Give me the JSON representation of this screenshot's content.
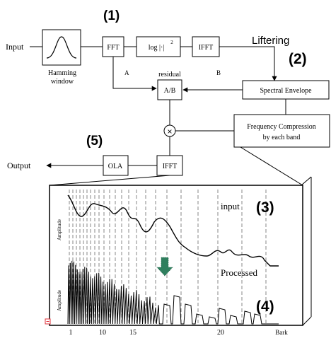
{
  "blocks": {
    "input_label": "Input",
    "output_label": "Output",
    "hamming": [
      "Hamming",
      "window"
    ],
    "fft": "FFT",
    "log_power": "log |·|",
    "log_power_exp": "2",
    "ifft_top": "IFFT",
    "ab": "A/B",
    "residual": "residual",
    "spectral_envelope": "Spectral Envelope",
    "freq_compression": [
      "Frequency Compression",
      "by each band"
    ],
    "ola": "OLA",
    "ifft_bottom": "IFFT",
    "liftering": "Liftering",
    "label_a": "A",
    "label_b": "B",
    "multiply": "×"
  },
  "step_labels": {
    "s1": "(1)",
    "s2": "(2)",
    "s3": "(3)",
    "s4": "(4)",
    "s5": "(5)"
  },
  "plot": {
    "input_label": "input",
    "processed_label": "Processed",
    "y_label": "Amplitude",
    "x_unit": "Bark",
    "x_ticks": [
      "1",
      "10",
      "15",
      "20"
    ]
  },
  "colors": {
    "line": "#000000",
    "arrow": "#2f7f5e",
    "marker": "#e0303a"
  }
}
